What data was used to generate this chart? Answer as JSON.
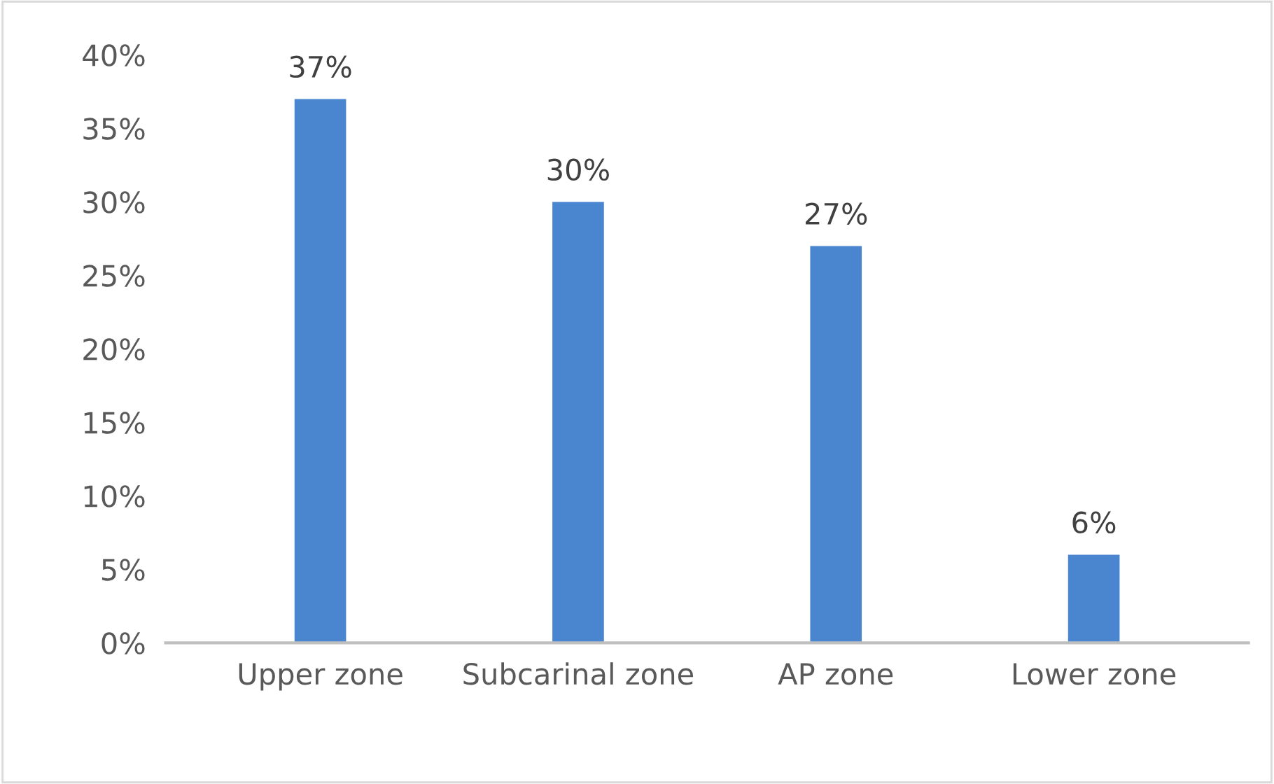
{
  "chart_data": {
    "type": "bar",
    "categories": [
      "Upper zone",
      "Subcarinal zone",
      "AP zone",
      "Lower zone"
    ],
    "values": [
      37,
      30,
      27,
      6
    ],
    "value_labels": [
      "37%",
      "30%",
      "27%",
      "6%"
    ],
    "color": "#4a86d0",
    "ylim": [
      0,
      40
    ],
    "yticks": [
      {
        "value": 0,
        "label": "0%"
      },
      {
        "value": 5,
        "label": "5%"
      },
      {
        "value": 10,
        "label": "10%"
      },
      {
        "value": 15,
        "label": "15%"
      },
      {
        "value": 20,
        "label": "20%"
      },
      {
        "value": 25,
        "label": "25%"
      },
      {
        "value": 30,
        "label": "30%"
      },
      {
        "value": 35,
        "label": "35%"
      },
      {
        "value": 40,
        "label": "40%"
      }
    ],
    "grid": false
  }
}
